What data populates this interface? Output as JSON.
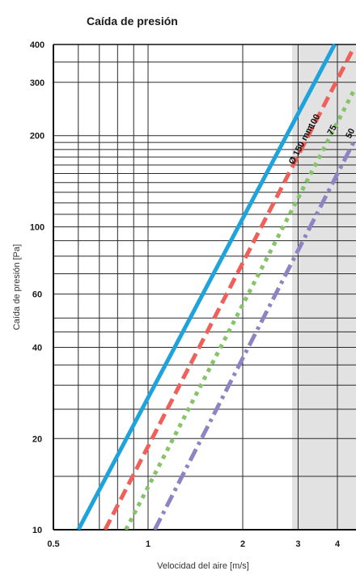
{
  "chart_data": {
    "type": "line",
    "title": "Caída de presión",
    "xlabel": "Velocidad del aire [m/s]",
    "ylabel": "Caída de presión [Pa]",
    "x_scale": "log",
    "y_scale": "log",
    "xlim": [
      0.5,
      4.5
    ],
    "ylim": [
      10,
      400
    ],
    "x_ticks": [
      0.5,
      1,
      2,
      3,
      4
    ],
    "x_tick_labels": [
      "0.5",
      "1",
      "2",
      "3",
      "4"
    ],
    "y_ticks": [
      10,
      20,
      40,
      60,
      100,
      200,
      300,
      400
    ],
    "y_tick_labels": [
      "10",
      "20",
      "40",
      "60",
      "100",
      "200",
      "300",
      "400"
    ],
    "x_grid": [
      0.6,
      0.7,
      0.8,
      0.9,
      1,
      2,
      3,
      4
    ],
    "y_grid": [
      15,
      20,
      25,
      30,
      35,
      40,
      45,
      50,
      60,
      70,
      80,
      90,
      100,
      110,
      120,
      130,
      140,
      150,
      160,
      170,
      180,
      190,
      200,
      300,
      350,
      400
    ],
    "grid": true,
    "shaded_region_x": [
      3,
      4.5
    ],
    "series": [
      {
        "name": "Ø 150 mm",
        "color": "#1fa3dc",
        "style": "solid",
        "x": [
          0.6,
          3.92
        ],
        "y": [
          10,
          400
        ]
      },
      {
        "name": "100",
        "color": "#f0605a",
        "style": "dashed",
        "x": [
          0.73,
          4.45
        ],
        "y": [
          10,
          380
        ]
      },
      {
        "name": "75",
        "color": "#86c46a",
        "style": "dotted",
        "x": [
          0.85,
          4.5
        ],
        "y": [
          10,
          280
        ]
      },
      {
        "name": "50",
        "color": "#8e84c4",
        "style": "dashdot",
        "x": [
          1.05,
          4.5
        ],
        "y": [
          10,
          190
        ]
      }
    ]
  }
}
